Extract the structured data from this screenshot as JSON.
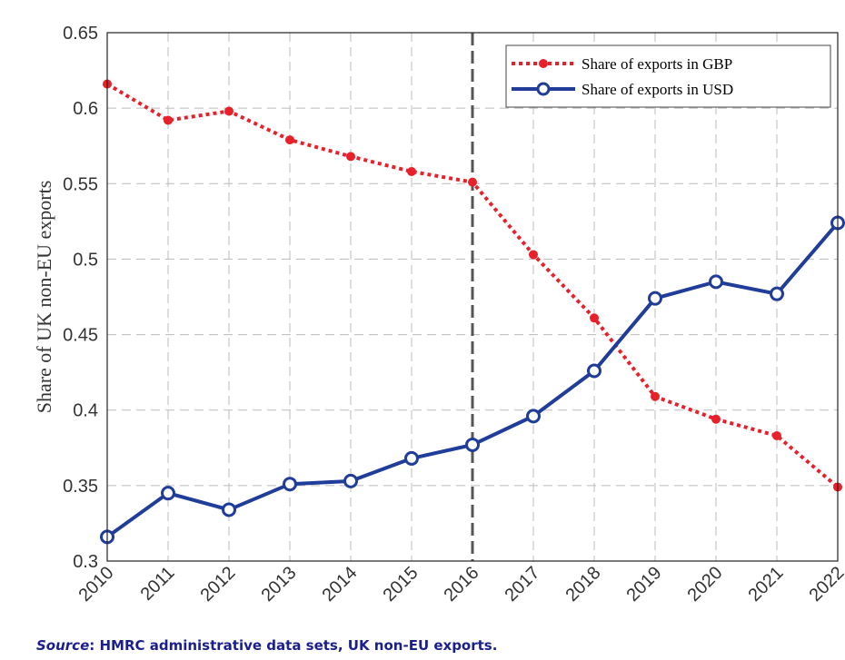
{
  "chart_data": {
    "type": "line",
    "title": "",
    "xlabel": "",
    "ylabel": "Share of UK non-EU exports",
    "x": [
      2010,
      2011,
      2012,
      2013,
      2014,
      2015,
      2016,
      2017,
      2018,
      2019,
      2020,
      2021,
      2022
    ],
    "x_tick_labels": [
      "2010",
      "2011",
      "2012",
      "2013",
      "2014",
      "2015",
      "2016",
      "2017",
      "2018",
      "2019",
      "2020",
      "2021",
      "2022"
    ],
    "ylim": [
      0.3,
      0.65
    ],
    "y_tick_labels": [
      "0.3",
      "0.35",
      "0.4",
      "0.45",
      "0.5",
      "0.55",
      "0.6",
      "0.65"
    ],
    "y_ticks": [
      0.3,
      0.35,
      0.4,
      0.45,
      0.5,
      0.55,
      0.6,
      0.65
    ],
    "grid": true,
    "vertical_marker": 2016,
    "legend_position": "top-right",
    "series": [
      {
        "name": "Share of exports in GBP",
        "color": "#e8202a",
        "style": "dotted",
        "values": [
          0.616,
          0.592,
          0.598,
          0.579,
          0.568,
          0.558,
          0.551,
          0.503,
          0.461,
          0.409,
          0.394,
          0.383,
          0.349
        ]
      },
      {
        "name": "Share of exports in USD",
        "color": "#1f3d99",
        "style": "solid",
        "values": [
          0.316,
          0.345,
          0.334,
          0.351,
          0.353,
          0.368,
          0.377,
          0.396,
          0.426,
          0.474,
          0.485,
          0.477,
          0.524
        ]
      }
    ]
  },
  "source": {
    "label": "Source",
    "text": ": HMRC administrative data sets, UK non-EU exports."
  }
}
